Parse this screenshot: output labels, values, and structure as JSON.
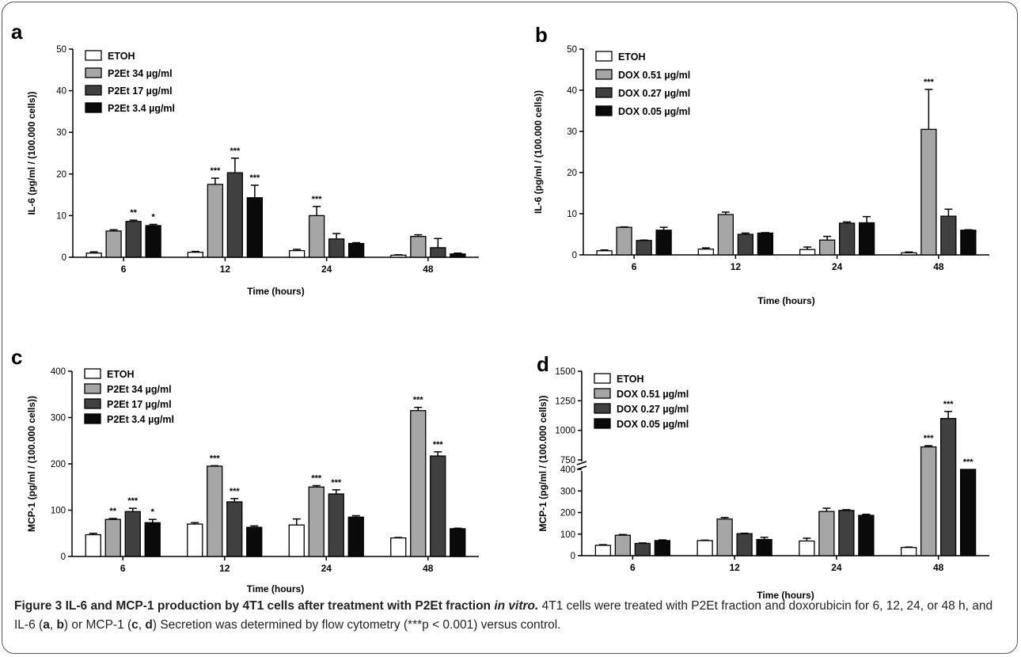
{
  "chart_data": [
    {
      "panel": "a",
      "type": "bar",
      "ylabel": "IL-6 (pg/ml / (100.000 cells))",
      "xlabel": "Time (hours)",
      "categories": [
        "6",
        "12",
        "24",
        "48"
      ],
      "ylim": [
        0,
        50
      ],
      "yticks": [
        0,
        10,
        20,
        30,
        40,
        50
      ],
      "legend_position": "top-left",
      "series": [
        {
          "name": "ETOH",
          "color": "#ffffff",
          "values": [
            1.0,
            1.2,
            1.6,
            0.5
          ],
          "errors": [
            0.3,
            0.2,
            0.3,
            0.1
          ],
          "sig": [
            "",
            "",
            "",
            ""
          ]
        },
        {
          "name": "P2Et 34 µg/ml",
          "color": "#a6a6a6",
          "values": [
            6.3,
            17.5,
            10.0,
            5.0
          ],
          "errors": [
            0.3,
            1.5,
            2.2,
            0.4
          ],
          "sig": [
            "",
            "***",
            "***",
            ""
          ]
        },
        {
          "name": "P2Et 17 µg/ml",
          "color": "#404040",
          "values": [
            8.6,
            20.3,
            4.4,
            2.3
          ],
          "errors": [
            0.3,
            3.5,
            1.3,
            2.2
          ],
          "sig": [
            "**",
            "***",
            "",
            ""
          ]
        },
        {
          "name": "P2Et 3.4 µg/ml",
          "color": "#0a0a0a",
          "values": [
            7.6,
            14.3,
            3.3,
            0.8
          ],
          "errors": [
            0.3,
            3.0,
            0.2,
            0.2
          ],
          "sig": [
            "*",
            "***",
            "",
            ""
          ]
        }
      ]
    },
    {
      "panel": "b",
      "type": "bar",
      "ylabel": "IL-6 (pg/ml / (100.000 cells))",
      "xlabel": "Time (hours)",
      "categories": [
        "6",
        "12",
        "24",
        "48"
      ],
      "ylim": [
        0,
        50
      ],
      "yticks": [
        0,
        10,
        20,
        30,
        40,
        50
      ],
      "legend_position": "top-left",
      "series": [
        {
          "name": "ETOH",
          "color": "#ffffff",
          "values": [
            1.0,
            1.4,
            1.3,
            0.5
          ],
          "errors": [
            0.2,
            0.3,
            0.6,
            0.2
          ],
          "sig": [
            "",
            "",
            "",
            ""
          ]
        },
        {
          "name": "DOX 0.51 µg/ml",
          "color": "#a6a6a6",
          "values": [
            6.7,
            9.8,
            3.6,
            30.5
          ],
          "errors": [
            0.1,
            0.6,
            0.9,
            9.7
          ],
          "sig": [
            "",
            "",
            "",
            "***"
          ]
        },
        {
          "name": "DOX 0.27 µg/ml",
          "color": "#404040",
          "values": [
            3.5,
            5.0,
            7.7,
            9.4
          ],
          "errors": [
            0.1,
            0.3,
            0.3,
            1.7
          ],
          "sig": [
            "",
            "",
            "",
            ""
          ]
        },
        {
          "name": "DOX 0.05 µg/ml",
          "color": "#0a0a0a",
          "values": [
            6.0,
            5.3,
            7.8,
            6.0
          ],
          "errors": [
            0.7,
            0.1,
            1.5,
            0.1
          ],
          "sig": [
            "",
            "",
            "",
            ""
          ]
        }
      ]
    },
    {
      "panel": "c",
      "type": "bar",
      "ylabel": "MCP-1 (pg/ml  /  (100.000 cells))",
      "xlabel": "Time (hours)",
      "categories": [
        "6",
        "12",
        "24",
        "48"
      ],
      "ylim": [
        0,
        400
      ],
      "yticks": [
        0,
        100,
        200,
        300,
        400
      ],
      "legend_position": "top-left",
      "series": [
        {
          "name": "ETOH",
          "color": "#ffffff",
          "values": [
            47,
            70,
            68,
            40
          ],
          "errors": [
            3,
            3,
            13,
            1
          ],
          "sig": [
            "",
            "",
            "",
            ""
          ]
        },
        {
          "name": "P2Et 34 µg/ml",
          "color": "#a6a6a6",
          "values": [
            80,
            195,
            150,
            315
          ],
          "errors": [
            2,
            1,
            3,
            7
          ],
          "sig": [
            "**",
            "***",
            "***",
            "***"
          ]
        },
        {
          "name": "P2Et 17 µg/ml",
          "color": "#404040",
          "values": [
            97,
            118,
            135,
            217
          ],
          "errors": [
            7,
            7,
            9,
            9
          ],
          "sig": [
            "***",
            "***",
            "***",
            "***"
          ]
        },
        {
          "name": "P2Et 3.4 µg/ml",
          "color": "#0a0a0a",
          "values": [
            73,
            63,
            85,
            60
          ],
          "errors": [
            7,
            3,
            3,
            1
          ],
          "sig": [
            "*",
            "",
            "",
            ""
          ]
        }
      ]
    },
    {
      "panel": "d",
      "type": "bar",
      "ylabel": "MCP-1 (pg/ml  /  (100.000 cells))",
      "xlabel": "Time (hours)",
      "categories": [
        "6",
        "12",
        "24",
        "48"
      ],
      "ylim": [
        0,
        1500
      ],
      "axis_break": [
        400,
        750
      ],
      "yticks": [
        0,
        100,
        200,
        300,
        400,
        750,
        1000,
        1250,
        1500
      ],
      "legend_position": "top-left",
      "series": [
        {
          "name": "ETOH",
          "color": "#ffffff",
          "values": [
            48,
            70,
            68,
            38
          ],
          "errors": [
            3,
            2,
            13,
            2
          ],
          "sig": [
            "",
            "",
            "",
            ""
          ]
        },
        {
          "name": "DOX 0.51 µg/ml",
          "color": "#a6a6a6",
          "values": [
            95,
            170,
            205,
            860
          ],
          "errors": [
            3,
            7,
            15,
            10
          ],
          "sig": [
            "",
            "",
            "",
            "***"
          ]
        },
        {
          "name": "DOX 0.27 µg/ml",
          "color": "#404040",
          "values": [
            57,
            102,
            210,
            1100
          ],
          "errors": [
            2,
            2,
            3,
            60
          ],
          "sig": [
            "",
            "",
            "",
            "***"
          ]
        },
        {
          "name": "DOX 0.05 µg/ml",
          "color": "#0a0a0a",
          "values": [
            70,
            75,
            187,
            400
          ],
          "errors": [
            3,
            10,
            5,
            0
          ],
          "sig": [
            "",
            "",
            "",
            "***"
          ]
        }
      ]
    }
  ],
  "caption": {
    "head": "Figure 3 IL-6 and MCP-1 production by 4T1 cells after treatment with P2Et fraction ",
    "head_italic": "in vitro.",
    "body_1": " 4T1 cells were treated with P2Et fraction and doxorubicin for 6, 12, 24, or 48 h, and IL-6 (",
    "a": "a",
    "sep1": ", ",
    "b": "b",
    "body_2": ") or MCP-1 (",
    "c": "c",
    "sep2": ", ",
    "d": "d",
    "body_3": ") Secretion was determined by flow cytometry (***p < 0.001) versus control."
  }
}
